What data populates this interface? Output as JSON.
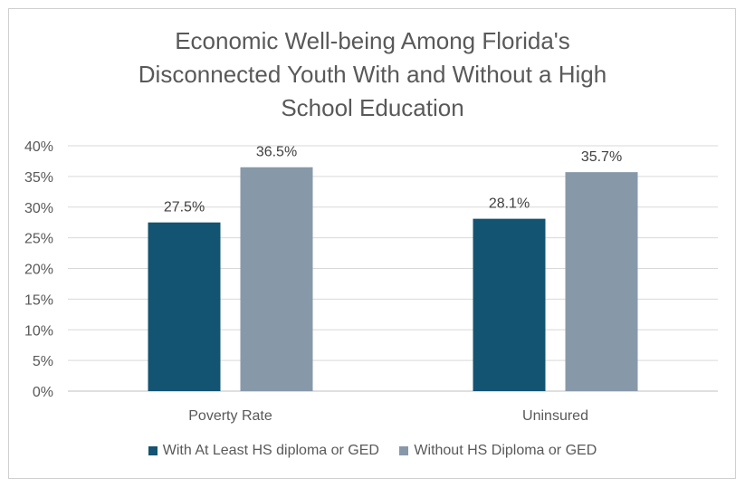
{
  "chart_data": {
    "type": "bar",
    "title_lines": [
      "Economic Well-being Among Florida's",
      "Disconnected Youth With and Without a High",
      "School Education"
    ],
    "categories": [
      "Poverty Rate",
      "Uninsured"
    ],
    "series": [
      {
        "name": "With At Least HS diploma or GED",
        "values": [
          27.5,
          28.1
        ],
        "labels": [
          "27.5%",
          "28.1%"
        ],
        "color": "#135472"
      },
      {
        "name": "Without HS Diploma or GED",
        "values": [
          36.5,
          35.7
        ],
        "labels": [
          "36.5%",
          "35.7%"
        ],
        "color": "#8799a9"
      }
    ],
    "ylim": [
      0,
      40
    ],
    "yticks": [
      "0%",
      "5%",
      "10%",
      "15%",
      "20%",
      "25%",
      "30%",
      "35%",
      "40%"
    ],
    "grid": true,
    "legend_position": "bottom"
  }
}
